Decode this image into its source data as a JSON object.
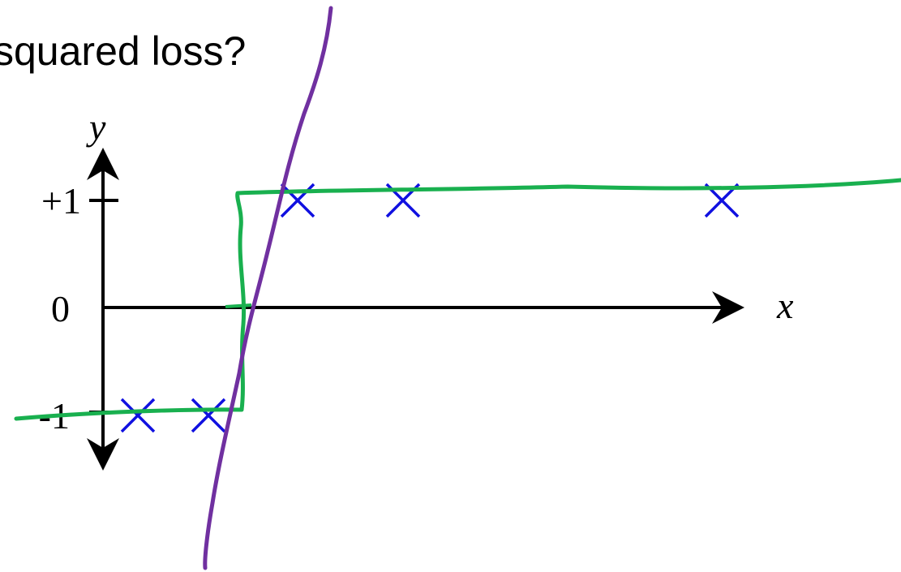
{
  "title": "squared loss?",
  "axes": {
    "x_label": "x",
    "y_label": "y"
  },
  "ticks": {
    "top": "+1",
    "middle": "0",
    "bottom": "-1"
  }
}
